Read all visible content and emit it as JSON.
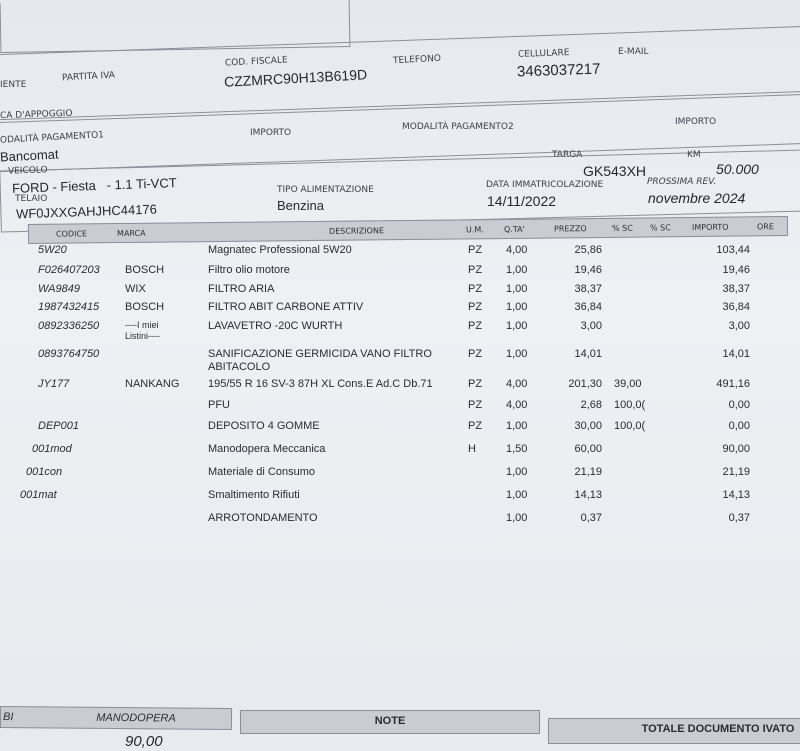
{
  "header": {
    "cliente_label": "IENTE",
    "partita_iva_label": "PARTITA IVA",
    "cod_fiscale_label": "COD. FISCALE",
    "cod_fiscale": "CZZMRC90H13B619D",
    "telefono_label": "TELEFONO",
    "cellulare_label": "CELLULARE",
    "cellulare": "3463037217",
    "email_label": "E-MAIL",
    "banca_label": "CA D'APPOGGIO",
    "pagamento1_label": "ODALITÀ PAGAMENTO1",
    "pagamento1": "Bancomat",
    "importo1_label": "IMPORTO",
    "pagamento2_label": "MODALITÀ PAGAMENTO2",
    "importo2_label": "IMPORTO"
  },
  "vehicle": {
    "targa_label": "TARGA",
    "targa": "GK543XH",
    "km_label": "KM",
    "km": "50.000",
    "veicolo_label": "VEICOLO",
    "veicolo": "FORD - Fiesta   - 1.1 Ti-VCT",
    "telaio_label": "TELAIO",
    "telaio": "WF0JXXGAHJHC44176",
    "alimentazione_label": "TIPO ALIMENTAZIONE",
    "alimentazione": "Benzina",
    "immatricolazione_label": "DATA IMMATRICOLAZIONE",
    "immatricolazione": "14/11/2022",
    "revisione_label": "PROSSIMA REV.",
    "revisione": "novembre 2024"
  },
  "table": {
    "columns": [
      "CODICE",
      "MARCA",
      "DESCRIZIONE",
      "U.M.",
      "Q.TA'",
      "PREZZO",
      "% SC",
      "% SC",
      "IMPORTO",
      "ORE"
    ],
    "rows": [
      {
        "codice": "5W20",
        "marca": "",
        "descrizione": "Magnatec Professional  5W20",
        "um": "PZ",
        "qta": "4,00",
        "prezzo": "25,86",
        "sc": "",
        "importo": "103,44"
      },
      {
        "codice": "F026407203",
        "marca": "BOSCH",
        "descrizione": "Filtro olio motore",
        "um": "PZ",
        "qta": "1,00",
        "prezzo": "19,46",
        "sc": "",
        "importo": "19,46"
      },
      {
        "codice": "WA9849",
        "marca": "WIX",
        "descrizione": "FILTRO ARIA",
        "um": "PZ",
        "qta": "1,00",
        "prezzo": "38,37",
        "sc": "",
        "importo": "38,37"
      },
      {
        "codice": "1987432415",
        "marca": "BOSCH",
        "descrizione": "FILTRO ABIT CARBONE ATTIV",
        "um": "PZ",
        "qta": "1,00",
        "prezzo": "36,84",
        "sc": "",
        "importo": "36,84"
      },
      {
        "codice": "0892336250",
        "marca": "----I miei Listini----",
        "descrizione": "LAVAVETRO -20C WURTH",
        "um": "PZ",
        "qta": "1,00",
        "prezzo": "3,00",
        "sc": "",
        "importo": "3,00"
      },
      {
        "codice": "0893764750",
        "marca": "",
        "descrizione": "SANIFICAZIONE GERMICIDA VANO FILTRO ABITACOLO",
        "um": "PZ",
        "qta": "1,00",
        "prezzo": "14,01",
        "sc": "",
        "importo": "14,01"
      },
      {
        "codice": "JY177",
        "marca": "NANKANG",
        "descrizione": "195/55 R 16 SV-3 87H XL Cons.E Ad.C Db.71",
        "um": "PZ",
        "qta": "4,00",
        "prezzo": "201,30",
        "sc": "39,00",
        "importo": "491,16"
      },
      {
        "codice": "",
        "marca": "",
        "descrizione": "PFU",
        "um": "PZ",
        "qta": "4,00",
        "prezzo": "2,68",
        "sc": "100,0(",
        "importo": "0,00"
      },
      {
        "codice": "DEP001",
        "marca": "",
        "descrizione": "DEPOSITO 4 GOMME",
        "um": "PZ",
        "qta": "1,00",
        "prezzo": "30,00",
        "sc": "100,0(",
        "importo": "0,00"
      },
      {
        "codice": "001mod",
        "marca": "",
        "descrizione": "Manodopera Meccanica",
        "um": "H",
        "qta": "1,50",
        "prezzo": "60,00",
        "sc": "",
        "importo": "90,00"
      },
      {
        "codice": "001con",
        "marca": "",
        "descrizione": "Materiale di Consumo",
        "um": "",
        "qta": "1,00",
        "prezzo": "21,19",
        "sc": "",
        "importo": "21,19"
      },
      {
        "codice": "001mat",
        "marca": "",
        "descrizione": "Smaltimento Rifiuti",
        "um": "",
        "qta": "1,00",
        "prezzo": "14,13",
        "sc": "",
        "importo": "14,13"
      },
      {
        "codice": "",
        "marca": "",
        "descrizione": "ARROTONDAMENTO",
        "um": "",
        "qta": "1,00",
        "prezzo": "0,37",
        "sc": "",
        "importo": "0,37"
      }
    ]
  },
  "footer": {
    "left_label": "BI",
    "manodopera_label": "MANODOPERA",
    "manodopera": "90,00",
    "note_label": "NOTE",
    "totale_label": "TOTALE DOCUMENTO IVATO"
  }
}
